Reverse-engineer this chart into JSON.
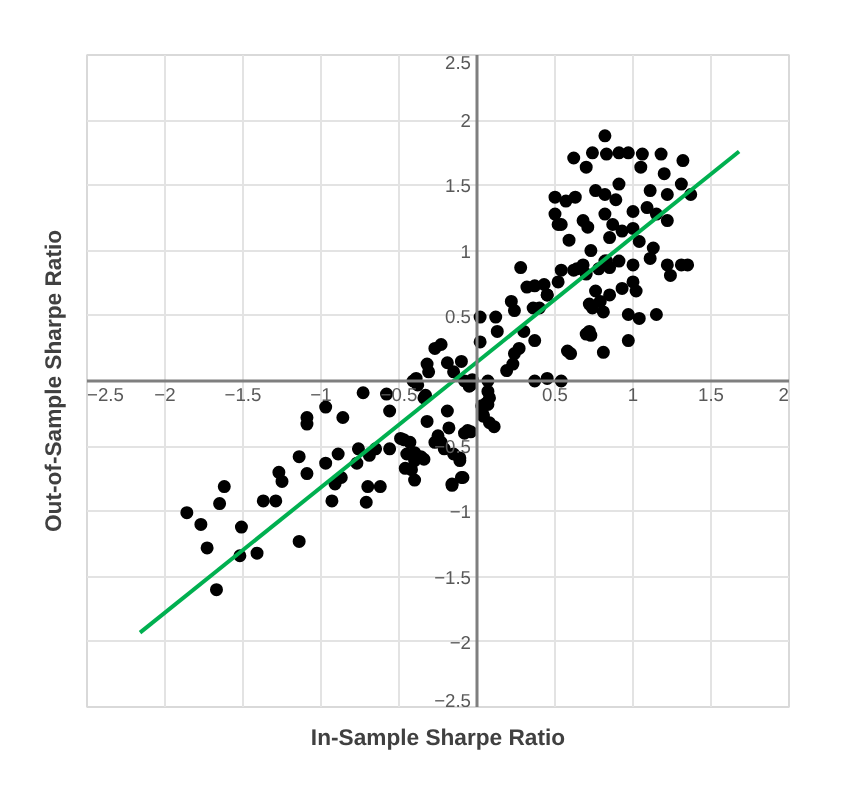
{
  "chart_data": {
    "type": "scatter",
    "xlabel": "In-Sample Sharpe Ratio",
    "ylabel": "Out-of-Sample Sharpe Ratio",
    "xlim": [
      -2.5,
      2
    ],
    "ylim": [
      -2.5,
      2.5
    ],
    "xticks": [
      -2.5,
      -2,
      -1.5,
      -1,
      -0.5,
      0.5,
      1,
      1.5,
      2
    ],
    "yticks": [
      -2.5,
      -2,
      -1.5,
      -1,
      -0.5,
      0.5,
      1,
      1.5,
      2,
      2.5
    ],
    "grid": true,
    "series": [
      {
        "color": "#000000",
        "marker": "circle",
        "x": [
          -1.86,
          -1.77,
          -1.73,
          -1.67,
          -1.65,
          -1.62,
          -1.51,
          -1.52,
          -1.41,
          -1.37,
          -1.29,
          -1.27,
          -1.25,
          -1.14,
          -1.14,
          -1.09,
          -1.09,
          -1.09,
          -0.97,
          -0.97,
          -0.93,
          -0.91,
          -0.89,
          -0.87,
          -0.86,
          -0.77,
          -0.76,
          -0.73,
          -0.71,
          -0.7,
          -0.69,
          -0.65,
          -0.62,
          -0.58,
          -0.56,
          -0.56,
          -0.49,
          -0.46,
          -0.43,
          -0.45,
          -0.4,
          -0.4,
          -0.38,
          -0.36,
          -0.33,
          -0.31,
          -0.27,
          -0.25,
          -0.18,
          -0.19,
          -0.16,
          -0.15,
          -0.09,
          -0.08,
          -0.11,
          -0.04,
          0.04,
          0.06,
          0.03,
          -0.08,
          -0.04,
          0.07,
          0.02,
          0.02,
          0.12,
          0.13,
          0.22,
          0.24,
          0.28,
          0.3,
          0.32,
          0.36,
          0.37,
          0.43,
          0.4,
          0.45,
          0.37,
          0.27,
          0.24,
          0.19,
          0.23,
          0.37,
          0.45,
          0.54,
          0.6,
          0.54,
          0.62,
          0.7,
          0.73,
          0.76,
          0.74,
          0.83,
          0.85,
          0.73,
          0.52,
          -0.1,
          -0.15,
          -0.19,
          -0.23,
          -0.27,
          -0.32,
          -0.39,
          -0.41,
          -0.34,
          -0.05,
          -0.03,
          0.07,
          0.07,
          0.08,
          0.04,
          0.08,
          0.11,
          -0.06,
          -0.11,
          -0.1,
          -0.16,
          -0.21,
          -0.23,
          -0.32,
          -0.4,
          -0.42,
          -0.34,
          -0.47,
          0.82,
          0.62,
          0.74,
          0.7,
          0.83,
          0.91,
          0.97,
          1.06,
          1.05,
          1.18,
          1.2,
          1.32,
          1.31,
          1.37,
          1.22,
          1.11,
          1.09,
          1.0,
          0.91,
          0.89,
          0.82,
          0.76,
          0.63,
          0.57,
          0.5,
          0.5,
          0.54,
          0.59,
          0.68,
          0.71,
          0.82,
          0.87,
          0.93,
          0.85,
          1.0,
          1.04,
          1.15,
          1.22,
          1.13,
          1.11,
          1.0,
          0.91,
          0.82,
          0.78,
          0.68,
          0.64,
          1.22,
          1.31,
          1.35,
          1.24,
          1.0,
          0.93,
          1.02,
          0.85,
          0.79,
          0.72,
          0.81,
          0.97,
          1.04,
          1.15,
          0.72,
          0.7,
          0.97,
          0.58,
          0.81,
          0.52,
          0.45
        ],
        "values": [
          -1.01,
          -1.1,
          -1.28,
          -1.6,
          -0.94,
          -0.81,
          -1.12,
          -1.34,
          -1.32,
          -0.92,
          -0.92,
          -0.7,
          -0.77,
          -1.23,
          -0.58,
          -0.28,
          -0.33,
          -0.71,
          -0.2,
          -0.63,
          -0.92,
          -0.79,
          -0.56,
          -0.74,
          -0.28,
          -0.63,
          -0.52,
          -0.09,
          -0.93,
          -0.81,
          -0.57,
          -0.52,
          -0.81,
          -0.1,
          -0.52,
          -0.23,
          -0.44,
          -0.67,
          -0.47,
          -0.56,
          -0.61,
          -0.76,
          -0.03,
          -0.58,
          -0.11,
          0.07,
          -0.47,
          -0.42,
          -0.36,
          -0.23,
          -0.8,
          -0.56,
          -0.74,
          -0.4,
          -0.61,
          -0.39,
          -0.26,
          -0.17,
          -0.19,
          0.0,
          -0.03,
          0.0,
          0.49,
          0.3,
          0.49,
          0.38,
          0.61,
          0.54,
          0.87,
          0.38,
          0.72,
          0.56,
          0.73,
          0.74,
          0.56,
          0.66,
          0.31,
          0.25,
          0.21,
          0.08,
          0.13,
          0.0,
          0.02,
          0.0,
          0.21,
          0.85,
          0.85,
          0.82,
          1.0,
          0.69,
          0.56,
          0.92,
          0.87,
          0.35,
          1.2,
          0.15,
          0.07,
          0.14,
          0.28,
          0.25,
          0.13,
          0.02,
          0.0,
          -0.13,
          -0.04,
          0.01,
          -0.08,
          -0.18,
          -0.13,
          -0.27,
          -0.32,
          -0.35,
          -0.38,
          -0.59,
          -0.74,
          -0.79,
          -0.52,
          -0.47,
          -0.31,
          -0.55,
          -0.68,
          -0.6,
          -0.45,
          1.88,
          1.71,
          1.75,
          1.64,
          1.74,
          1.75,
          1.75,
          1.74,
          1.64,
          1.74,
          1.59,
          1.69,
          1.51,
          1.43,
          1.43,
          1.46,
          1.33,
          1.3,
          1.51,
          1.39,
          1.43,
          1.46,
          1.41,
          1.38,
          1.41,
          1.28,
          1.2,
          1.08,
          1.23,
          1.18,
          1.28,
          1.2,
          1.15,
          1.1,
          1.17,
          1.07,
          1.28,
          1.23,
          1.02,
          0.94,
          0.89,
          0.92,
          0.92,
          0.86,
          0.89,
          0.86,
          0.89,
          0.89,
          0.89,
          0.81,
          0.76,
          0.71,
          0.69,
          0.66,
          0.61,
          0.59,
          0.53,
          0.51,
          0.48,
          0.51,
          0.38,
          0.36,
          0.31,
          0.23,
          0.22,
          0.76,
          0.66
        ]
      },
      {
        "type": "line",
        "color": "#00b050",
        "x": [
          -2.16,
          1.68
        ],
        "values": [
          -1.93,
          1.76
        ]
      }
    ]
  }
}
